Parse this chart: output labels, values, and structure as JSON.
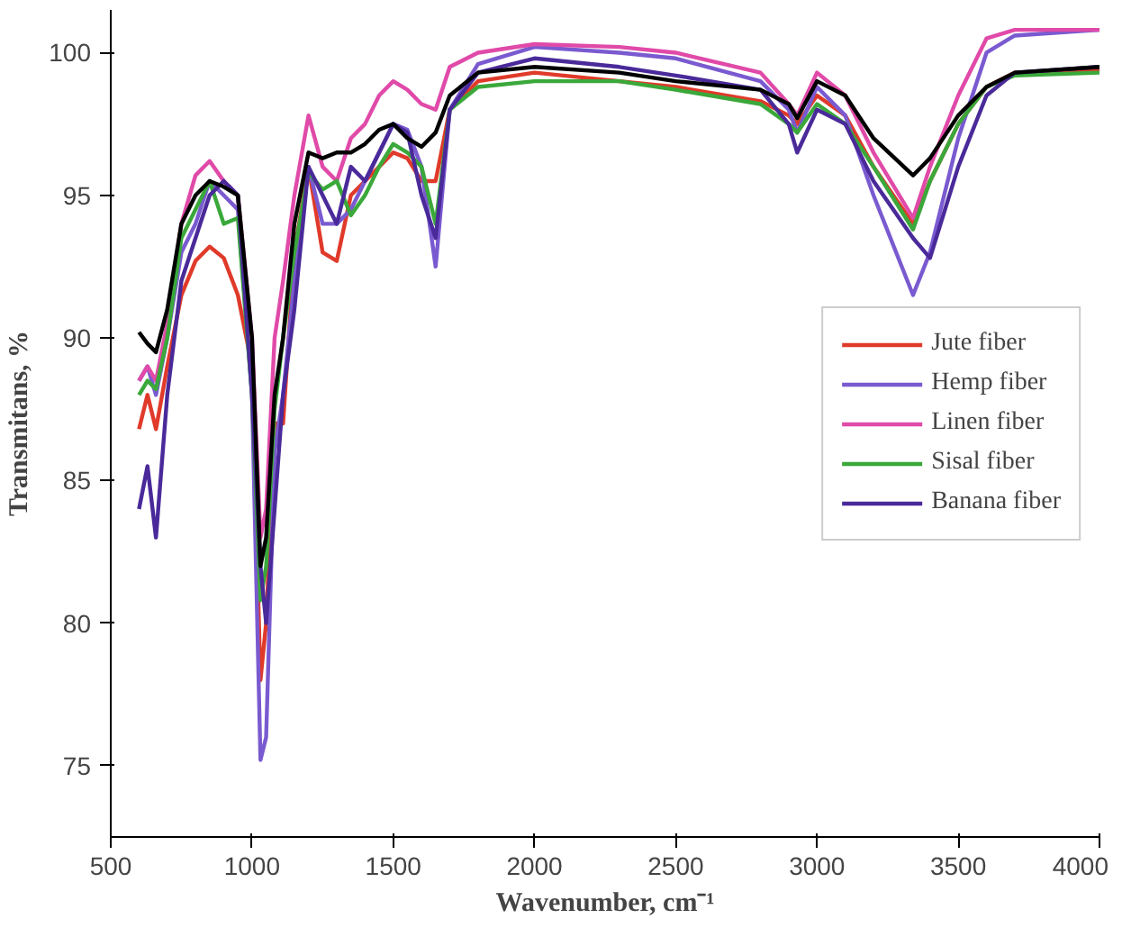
{
  "chart_data": {
    "type": "line",
    "xlabel": "Wavenumber, cm⁻¹",
    "ylabel": "Transmitans, %",
    "xlim": [
      500,
      4000
    ],
    "ylim": [
      72.5,
      101.5
    ],
    "xticks": [
      500,
      1000,
      1500,
      2000,
      2500,
      3000,
      3500,
      4000
    ],
    "yticks": [
      75,
      80,
      85,
      90,
      95,
      100
    ],
    "grid": false,
    "legend": "right",
    "marker": "none",
    "line_style": "solid",
    "x": [
      600,
      630,
      660,
      700,
      750,
      800,
      850,
      900,
      950,
      1000,
      1030,
      1050,
      1080,
      1110,
      1150,
      1200,
      1250,
      1300,
      1350,
      1400,
      1450,
      1500,
      1550,
      1600,
      1650,
      1700,
      1800,
      2000,
      2300,
      2500,
      2800,
      2900,
      2930,
      3000,
      3100,
      3200,
      3340,
      3400,
      3500,
      3600,
      3700,
      4000
    ],
    "series": [
      {
        "name": "Jute fiber",
        "color": "#e03a2a",
        "values": [
          86.8,
          88,
          86.8,
          89,
          91.5,
          92.7,
          93.2,
          92.8,
          91.5,
          89,
          78,
          80,
          87,
          87,
          93,
          96,
          93,
          92.7,
          95,
          95.5,
          96,
          96.5,
          96.3,
          95.5,
          95.5,
          98,
          99,
          99.3,
          99,
          98.8,
          98.3,
          97.8,
          97.5,
          98.5,
          97.8,
          96,
          94,
          95.5,
          97.5,
          98.8,
          99.3,
          99.4
        ]
      },
      {
        "name": "Hemp fiber",
        "color": "#7a5ad0",
        "values": [
          88.5,
          89,
          88,
          90,
          93,
          94,
          95.5,
          95,
          94.5,
          88,
          75.2,
          76,
          86,
          88,
          92,
          96,
          94,
          94,
          94.5,
          95.5,
          96.5,
          97.5,
          97.3,
          96,
          92.5,
          98,
          99.6,
          100.2,
          100,
          99.8,
          99,
          98,
          97.2,
          98.8,
          97.8,
          95,
          91.5,
          93,
          97,
          100,
          100.6,
          100.8
        ]
      },
      {
        "name": "Linen fiber",
        "color": "#e04aa8",
        "values": [
          88.5,
          89,
          88.5,
          90.5,
          94,
          95.7,
          96.2,
          95.5,
          95,
          90,
          83,
          84,
          90,
          92,
          95,
          97.8,
          96,
          95.5,
          97,
          97.5,
          98.5,
          99,
          98.7,
          98.2,
          98,
          99.5,
          100,
          100.3,
          100.2,
          100,
          99.3,
          98.2,
          97.8,
          99.3,
          98.5,
          96.5,
          94.2,
          96,
          98.5,
          100.5,
          100.8,
          100.8
        ]
      },
      {
        "name": "Sisal fiber",
        "color": "#3aa83a",
        "values": [
          88,
          88.5,
          88.2,
          90,
          93.5,
          94.5,
          95.5,
          94,
          94.2,
          88,
          80.8,
          82,
          87.5,
          90,
          93,
          95.8,
          95.2,
          95.5,
          94.3,
          95,
          96,
          96.8,
          96.5,
          96,
          94,
          98,
          98.8,
          99,
          99,
          98.7,
          98.2,
          97.5,
          97.2,
          98.2,
          97.5,
          96,
          93.8,
          95.5,
          97.5,
          98.8,
          99.2,
          99.3
        ]
      },
      {
        "name": "Banana fiber",
        "color": "#4a2a9a",
        "values": [
          84,
          85.5,
          83,
          88,
          92,
          93.5,
          95,
          95.5,
          95,
          88,
          82,
          80,
          84,
          88,
          91,
          96,
          95,
          94,
          96,
          95.5,
          96.5,
          97.5,
          97.2,
          95,
          93.5,
          98,
          99.3,
          99.8,
          99.5,
          99.2,
          98.7,
          97.5,
          96.5,
          98,
          97.5,
          95.5,
          93.5,
          92.8,
          96,
          98.5,
          99.3,
          99.5
        ]
      },
      {
        "color": "#000000",
        "values": [
          90.2,
          89.8,
          89.5,
          91,
          94,
          95,
          95.5,
          95.3,
          95,
          90,
          82,
          83,
          88,
          90,
          94,
          96.5,
          96.3,
          96.5,
          96.5,
          96.8,
          97.3,
          97.5,
          97,
          96.7,
          97.2,
          98.5,
          99.3,
          99.5,
          99.3,
          99,
          98.7,
          98.2,
          97.7,
          99,
          98.5,
          97,
          95.7,
          96.3,
          97.8,
          98.8,
          99.3,
          99.5
        ]
      }
    ]
  }
}
